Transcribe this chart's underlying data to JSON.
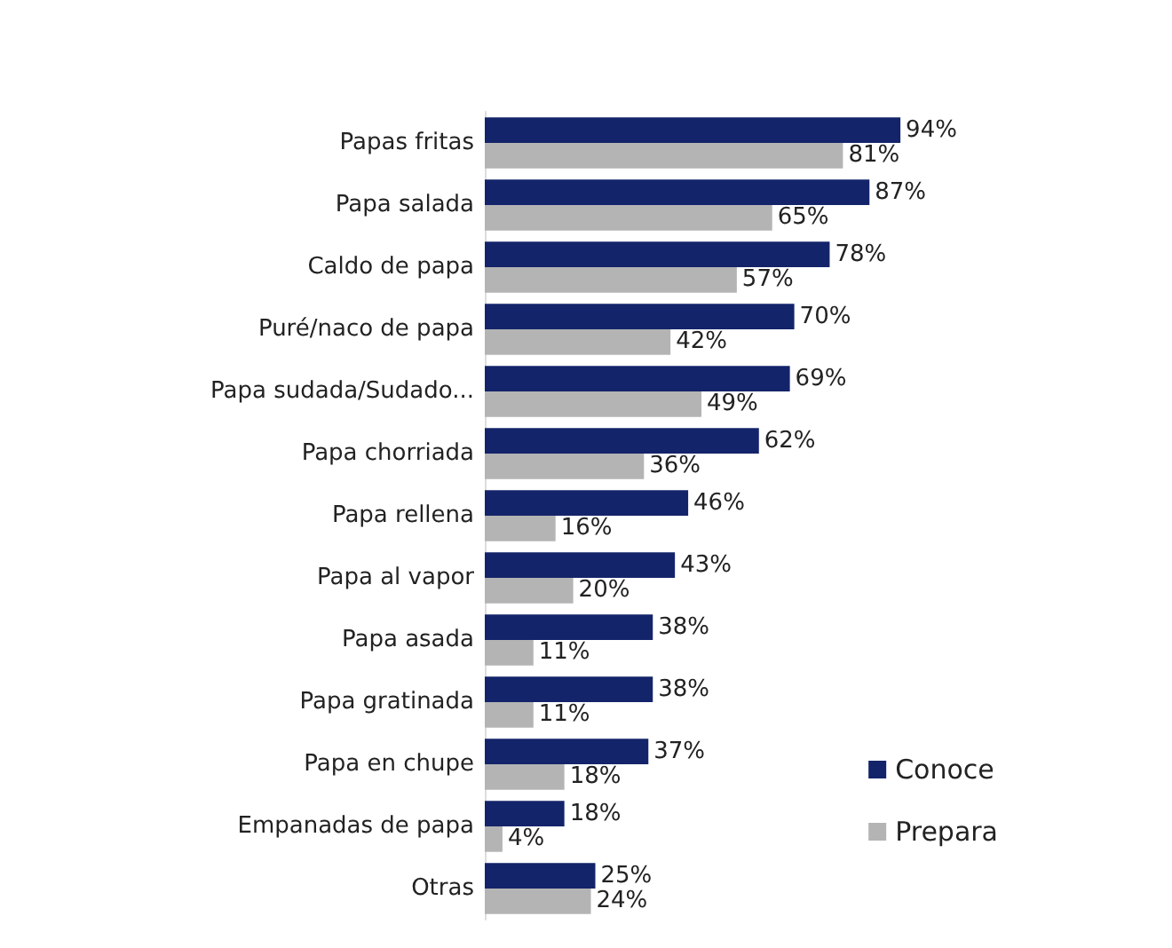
{
  "chart_data": {
    "type": "bar",
    "orientation": "horizontal",
    "categories": [
      "Papas fritas",
      "Papa salada",
      "Caldo de papa",
      "Puré/naco de papa",
      "Papa sudada/Sudado...",
      "Papa chorriada",
      "Papa rellena",
      "Papa al vapor",
      "Papa asada",
      "Papa gratinada",
      "Papa en chupe",
      "Empanadas de papa",
      "Otras"
    ],
    "series": [
      {
        "name": "Conoce",
        "color": "#14246a",
        "values": [
          94,
          87,
          78,
          70,
          69,
          62,
          46,
          43,
          38,
          38,
          37,
          18,
          25
        ],
        "value_labels": [
          "94%",
          "87%",
          "78%",
          "70%",
          "69%",
          "62%",
          "46%",
          "43%",
          "38%",
          "38%",
          "37%",
          "18%",
          "25%"
        ]
      },
      {
        "name": "Prepara",
        "color": "#b4b4b4",
        "values": [
          81,
          65,
          57,
          42,
          49,
          36,
          16,
          20,
          11,
          11,
          18,
          4,
          24
        ],
        "value_labels": [
          "81%",
          "65%",
          "57%",
          "42%",
          "49%",
          "36%",
          "16%",
          "20%",
          "11%",
          "11%",
          "18%",
          "4%",
          "24%"
        ]
      }
    ],
    "legend": "bottom right",
    "grid": false
  }
}
